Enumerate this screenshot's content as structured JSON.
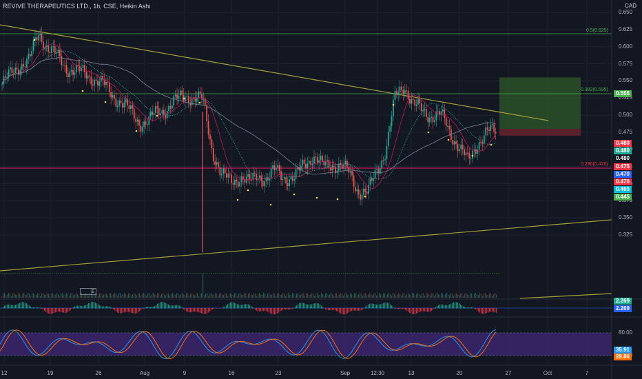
{
  "header": {
    "title": "REVIVE THERAPEUTICS LTD., 1h, CSE, Heikin Ashi",
    "currency": "CAD"
  },
  "price_axis": {
    "ticks": [
      "0.650",
      "0.625",
      "0.600",
      "0.575",
      "0.550",
      "0.525",
      "0.500",
      "0.475",
      "0.450",
      "0.425",
      "0.400",
      "0.375",
      "0.350",
      "0.325"
    ]
  },
  "time_axis": {
    "ticks": [
      "12",
      "19",
      "26",
      "Aug",
      "9",
      "16",
      "23",
      "Sep",
      "12:30",
      "13",
      "20",
      "27",
      "Oct",
      "7"
    ]
  },
  "fib_levels": [
    {
      "label": "0.5(0.625)",
      "color": "#4caf50"
    },
    {
      "label": "0.382(0.595)",
      "color": "#4caf50"
    },
    {
      "label": "0.236(0.470)",
      "color": "#f23645"
    }
  ],
  "price_tags": [
    {
      "value": "0.555",
      "bg": "#4caf50"
    },
    {
      "value": "0.480",
      "bg": "#f23645"
    },
    {
      "value": "0.480",
      "bg": "#22ab94"
    },
    {
      "value": "0.480",
      "bg": "#131722"
    },
    {
      "value": "0.475",
      "bg": "#f23645"
    },
    {
      "value": "0.470",
      "bg": "#2962ff"
    },
    {
      "value": "0.470",
      "bg": "#f23645"
    },
    {
      "value": "0.465",
      "bg": "#00bcd4"
    },
    {
      "value": "0.445",
      "bg": "#4caf50"
    }
  ],
  "indicator_tags": [
    {
      "value": "2.269",
      "bg": "#22ab94"
    },
    {
      "value": "2.269",
      "bg": "#2962ff"
    },
    {
      "value": "35.91",
      "bg": "#2196f3"
    },
    {
      "value": "28.86",
      "bg": "#ff6d00"
    }
  ],
  "rsi_axis": {
    "ticks": [
      "80.00",
      "20.00"
    ]
  },
  "toolbar": {
    "collapse_label": "E"
  },
  "chart_data": {
    "type": "candlestick-heikin-ashi",
    "symbol": "REVIVE THERAPEUTICS LTD.",
    "interval": "1h",
    "exchange": "CSE",
    "currency": "CAD",
    "ylim": [
      0.32,
      0.655
    ],
    "series_close_approx": [
      0.545,
      0.56,
      0.575,
      0.58,
      0.62,
      0.6,
      0.585,
      0.57,
      0.565,
      0.56,
      0.555,
      0.545,
      0.53,
      0.52,
      0.505,
      0.49,
      0.49,
      0.505,
      0.51,
      0.52,
      0.53,
      0.525,
      0.52,
      0.45,
      0.41,
      0.405,
      0.41,
      0.4,
      0.415,
      0.405,
      0.42,
      0.41,
      0.405,
      0.43,
      0.44,
      0.425,
      0.43,
      0.425,
      0.415,
      0.39,
      0.385,
      0.42,
      0.45,
      0.525,
      0.545,
      0.515,
      0.505,
      0.5,
      0.5,
      0.475,
      0.455,
      0.43,
      0.46,
      0.475,
      0.475
    ],
    "fib_levels": [
      {
        "ratio": 0.5,
        "price": 0.625
      },
      {
        "ratio": 0.382,
        "price": 0.595
      },
      {
        "ratio": 0.236,
        "price": 0.47
      }
    ],
    "target_zone": {
      "low": 0.48,
      "high": 0.555
    }
  }
}
